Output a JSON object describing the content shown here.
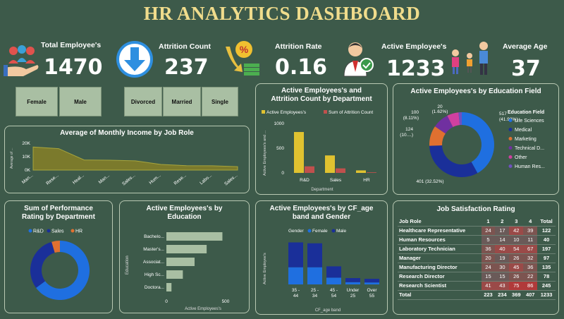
{
  "title": "HR ANALYTICS DASHBOARD",
  "kpis": [
    {
      "label": "Total Employee's",
      "value": "1470",
      "icon": "employees-hand-icon"
    },
    {
      "label": "Attrition Count",
      "value": "237",
      "icon": "down-arrow-icon"
    },
    {
      "label": "Attrition Rate",
      "value": "0.16",
      "icon": "percent-money-icon"
    },
    {
      "label": "Active Employee's",
      "value": "1233",
      "icon": "active-employee-icon"
    },
    {
      "label": "Average Age",
      "value": "37",
      "icon": "family-icon"
    }
  ],
  "slicers": {
    "gender": [
      "Female",
      "Male"
    ],
    "marital": [
      "Divorced",
      "Married",
      "Single"
    ]
  },
  "colors": {
    "yellow": "#e0c230",
    "red": "#c0504d",
    "blue": "#1f6fe0",
    "darkblue": "#1a2f99",
    "orange": "#e07030",
    "purple": "#7030a0",
    "pink": "#d040a0",
    "olive": "#8a8a2a"
  },
  "charts": {
    "income": {
      "type": "area",
      "title": "Average of Monthly Income by Job Role",
      "ylabel": "Average of ...",
      "categories": [
        "Man...",
        "Rese...",
        "Heal...",
        "Man...",
        "Sales...",
        "Hum...",
        "Rese...",
        "Labo...",
        "Sales..."
      ],
      "values": [
        17200,
        16000,
        7500,
        7400,
        6900,
        4200,
        3300,
        3200,
        2600
      ],
      "yticks": [
        "20K",
        "10K",
        "0K"
      ],
      "ylim": [
        0,
        20000
      ]
    },
    "dept": {
      "type": "bar",
      "title": "Active Employees's and Attrition Count by Department",
      "legend": [
        "Active Employees's",
        "Sum of Attrition Count"
      ],
      "categories": [
        "R&D",
        "Sales",
        "HR"
      ],
      "series": [
        {
          "name": "Active Employees's",
          "values": [
            828,
            354,
            51
          ]
        },
        {
          "name": "Sum of Attrition Count",
          "values": [
            133,
            92,
            12
          ]
        }
      ],
      "yticks": [
        "1000",
        "500",
        "0"
      ],
      "ylim": [
        0,
        1000
      ],
      "xlabel": "Department",
      "ylabel": "Active Employees's and ..."
    },
    "edufield": {
      "type": "pie",
      "title": "Active Employees's by Education Field",
      "legend_title": "Education Field",
      "slices": [
        {
          "name": "Life Sciences",
          "value": 517,
          "label": "517 (41.93%)"
        },
        {
          "name": "Medical",
          "value": 401,
          "label": "401 (32.52%)"
        },
        {
          "name": "Marketing",
          "value": 124,
          "label": "124 (10....)"
        },
        {
          "name": "Technical D...",
          "value": 100,
          "label": "100 (8.11%)"
        },
        {
          "name": "Other",
          "value": 71,
          "label": ""
        },
        {
          "name": "Human Res...",
          "value": 20,
          "label": "20 (1.62%)"
        }
      ]
    },
    "perf": {
      "type": "pie",
      "title": "Sum of Performance Rating by Department",
      "legend": [
        "R&D",
        "Sales",
        "HR"
      ],
      "values": [
        1000,
        470,
        70
      ]
    },
    "education": {
      "type": "bar",
      "title": "Active Employees's by Education",
      "categories": [
        "Bachelo...",
        "Master's...",
        "Associat...",
        "High Sc...",
        "Doctora..."
      ],
      "values": [
        473,
        340,
        238,
        139,
        43
      ],
      "xticks": [
        "0",
        "500"
      ],
      "xlim": [
        0,
        500
      ],
      "xlabel": "Active Employees's",
      "ylabel": "Education"
    },
    "ageband": {
      "type": "bar",
      "title": "Active Employees's by CF_age band and Gender",
      "legend_title": "Gender",
      "legend": [
        "Female",
        "Male"
      ],
      "categories": [
        "35 - 44",
        "25 - 34",
        "45 - 54",
        "Under 25",
        "Over 55"
      ],
      "series": [
        {
          "name": "Female",
          "values": [
            190,
            190,
            75,
            25,
            22
          ]
        },
        {
          "name": "Male",
          "values": [
            275,
            265,
            125,
            45,
            40
          ]
        }
      ],
      "ylim": [
        0,
        500
      ],
      "xlabel": "CF_age band",
      "ylabel": "Active Employee's"
    }
  },
  "jobsat": {
    "title": "Job Satisfaction Rating",
    "headers": [
      "Job Role",
      "1",
      "2",
      "3",
      "4",
      "Total"
    ],
    "rows": [
      [
        "Healthcare Representative",
        "24",
        "17",
        "42",
        "39",
        "122"
      ],
      [
        "Human Resources",
        "5",
        "14",
        "10",
        "11",
        "40"
      ],
      [
        "Laboratory Technician",
        "36",
        "40",
        "54",
        "67",
        "197"
      ],
      [
        "Manager",
        "20",
        "19",
        "26",
        "32",
        "97"
      ],
      [
        "Manufacturing Director",
        "24",
        "30",
        "45",
        "36",
        "135"
      ],
      [
        "Research Director",
        "15",
        "15",
        "26",
        "22",
        "78"
      ],
      [
        "Research Scientist",
        "41",
        "43",
        "75",
        "86",
        "245"
      ]
    ],
    "total": [
      "Total",
      "223",
      "234",
      "369",
      "407",
      "1233"
    ]
  }
}
